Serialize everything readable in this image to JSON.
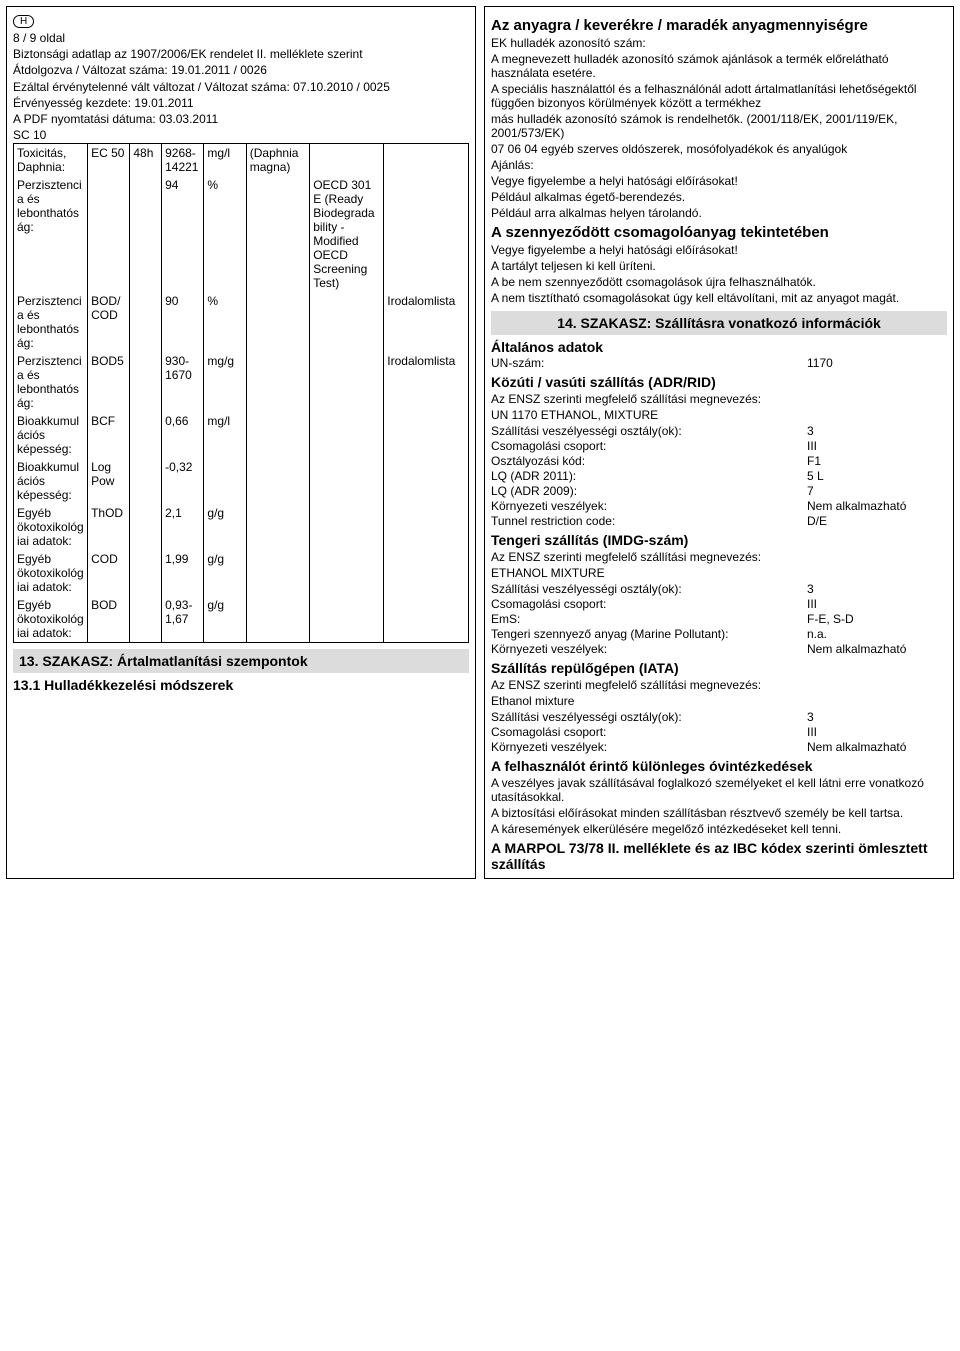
{
  "header": {
    "badge": "H",
    "page_line": "8 / 9 oldal",
    "line2": "Biztonsági adatlap az 1907/2006/EK rendelet II. melléklete szerint",
    "line3": "Átdolgozva / Változat száma: 19.01.2011  / 0026",
    "line4": "Ezáltal érvénytelenné vált változat / Változat száma: 07.10.2010 / 0025",
    "line5": "Érvényesség kezdete: 19.01.2011",
    "line6": "A PDF nyomtatási dátuma: 03.03.2011",
    "line7": "SC 10"
  },
  "table": {
    "rows": [
      {
        "c1": "Toxicitás, Daphnia:",
        "c2": "EC 50",
        "c3": "48h",
        "c4": "9268-14221",
        "c5": "mg/l",
        "c6": "(Daphnia magna)",
        "c7": "",
        "c8": ""
      },
      {
        "c1": "Perzisztencia és lebonthatóság:",
        "c2": "",
        "c3": "",
        "c4": "94",
        "c5": "%",
        "c6": "",
        "c7": "OECD 301 E (Ready Biodegradability - Modified OECD Screening Test)",
        "c8": ""
      },
      {
        "c1": "Perzisztencia és lebonthatóság:",
        "c2": "BOD/COD",
        "c3": "",
        "c4": "90",
        "c5": "%",
        "c6": "",
        "c7": "",
        "c8": "Irodalomlista"
      },
      {
        "c1": "Perzisztencia és lebonthatóság:",
        "c2": "BOD5",
        "c3": "",
        "c4": "930-1670",
        "c5": "mg/g",
        "c6": "",
        "c7": "",
        "c8": "Irodalomlista"
      },
      {
        "c1": "Bioakkumulációs képesség:",
        "c2": "BCF",
        "c3": "",
        "c4": "0,66",
        "c5": "mg/l",
        "c6": "",
        "c7": "",
        "c8": ""
      },
      {
        "c1": "Bioakkumulációs képesség:",
        "c2": "Log Pow",
        "c3": "",
        "c4": "-0,32",
        "c5": "",
        "c6": "",
        "c7": "",
        "c8": ""
      },
      {
        "c1": "Egyéb ökotoxikológiai adatok:",
        "c2": "ThOD",
        "c3": "",
        "c4": "2,1",
        "c5": "g/g",
        "c6": "",
        "c7": "",
        "c8": ""
      },
      {
        "c1": "Egyéb ökotoxikológiai adatok:",
        "c2": "COD",
        "c3": "",
        "c4": "1,99",
        "c5": "g/g",
        "c6": "",
        "c7": "",
        "c8": ""
      },
      {
        "c1": "Egyéb ökotoxikológiai adatok:",
        "c2": "BOD",
        "c3": "",
        "c4": "0,93-1,67",
        "c5": "g/g",
        "c6": "",
        "c7": "",
        "c8": ""
      }
    ]
  },
  "left_sections": {
    "s13_head": "13. SZAKASZ: Ártalmatlanítási szempontok",
    "s13_1": "13.1 Hulladékkezelési módszerek"
  },
  "right": {
    "title1": "Az anyagra / keverékre / maradék anyagmennyiségre",
    "p1": "EK hulladék azonosító szám:",
    "p2": "A megnevezett hulladék azonosító számok ajánlások a termék előrelátható használata esetére.",
    "p3": "A speciális használattól és a felhasználónál adott ártalmatlanítási lehetőségektől függően bizonyos körülmények között a termékhez",
    "p4": "más hulladék azonosító számok is rendelhetők. (2001/118/EK, 2001/119/EK, 2001/573/EK)",
    "p5": "07 06 04 egyéb szerves oldószerek, mosófolyadékok és anyalúgok",
    "p6": "Ajánlás:",
    "p7": "Vegye figyelembe a helyi hatósági előírásokat!",
    "p8": "Például alkalmas égető-berendezés.",
    "p9": "Például arra alkalmas helyen tárolandó.",
    "title2": "A szennyeződött csomagolóanyag tekintetében",
    "p10": "Vegye figyelembe a helyi hatósági előírásokat!",
    "p11": "A tartályt teljesen ki kell üríteni.",
    "p12": "A be nem szennyeződött csomagolások újra felhasználhatók.",
    "p13": "A nem tisztítható csomagolásokat úgy kell eltávolítani, mit az anyagot magát.",
    "s14_head": "14. SZAKASZ: Szállításra vonatkozó információk",
    "gen_head": "Általános adatok",
    "un_label": "UN-szám:",
    "un_value": "1170",
    "adr_head": "Közúti / vasúti szállítás (ADR/RID)",
    "adr_p1": "Az ENSZ szerinti megfelelő szállítási megnevezés:",
    "adr_p1v": "UN 1170  ETHANOL, MIXTURE",
    "adr_r1l": "Szállítási veszélyességi osztály(ok):",
    "adr_r1v": "3",
    "adr_r2l": "Csomagolási csoport:",
    "adr_r2v": "III",
    "adr_r3l": "Osztályozási kód:",
    "adr_r3v": "F1",
    "adr_r4l": "LQ (ADR 2011):",
    "adr_r4v": "5 L",
    "adr_r5l": "LQ (ADR 2009):",
    "adr_r5v": "7",
    "adr_r6l": "Környezeti veszélyek:",
    "adr_r6v": "Nem alkalmazható",
    "adr_r7l": "Tunnel restriction code:",
    "adr_r7v": "D/E",
    "imdg_head": "Tengeri szállítás (IMDG-szám)",
    "imdg_p1": "Az ENSZ szerinti megfelelő szállítási megnevezés:",
    "imdg_p1v": "ETHANOL MIXTURE",
    "imdg_r1l": "Szállítási veszélyességi osztály(ok):",
    "imdg_r1v": "3",
    "imdg_r2l": "Csomagolási csoport:",
    "imdg_r2v": "III",
    "imdg_r3l": "EmS:",
    "imdg_r3v": "F-E, S-D",
    "imdg_r4l": "Tengeri szennyező anyag (Marine Pollutant):",
    "imdg_r4v": "n.a.",
    "imdg_r5l": "Környezeti veszélyek:",
    "imdg_r5v": "Nem alkalmazható",
    "iata_head": "Szállítás repülőgépen (IATA)",
    "iata_p1": "Az ENSZ szerinti megfelelő szállítási megnevezés:",
    "iata_p1v": "Ethanol mixture",
    "iata_r1l": "Szállítási veszélyességi osztály(ok):",
    "iata_r1v": "3",
    "iata_r2l": "Csomagolási csoport:",
    "iata_r2v": "III",
    "iata_r3l": "Környezeti veszélyek:",
    "iata_r3v": "Nem alkalmazható",
    "spec_head": "A felhasználót érintő különleges óvintézkedések",
    "spec_p1": "A veszélyes javak szállításával foglalkozó személyeket el kell látni erre vonatkozó utasításokkal.",
    "spec_p2": "A biztosítási előírásokat minden szállításban résztvevő személy be kell tartsa.",
    "spec_p3": "A káresemények elkerülésére megelőző intézkedéseket kell tenni.",
    "marpol_head": "A MARPOL 73/78 II. melléklete és az IBC kódex szerinti ömlesztett szállítás"
  }
}
